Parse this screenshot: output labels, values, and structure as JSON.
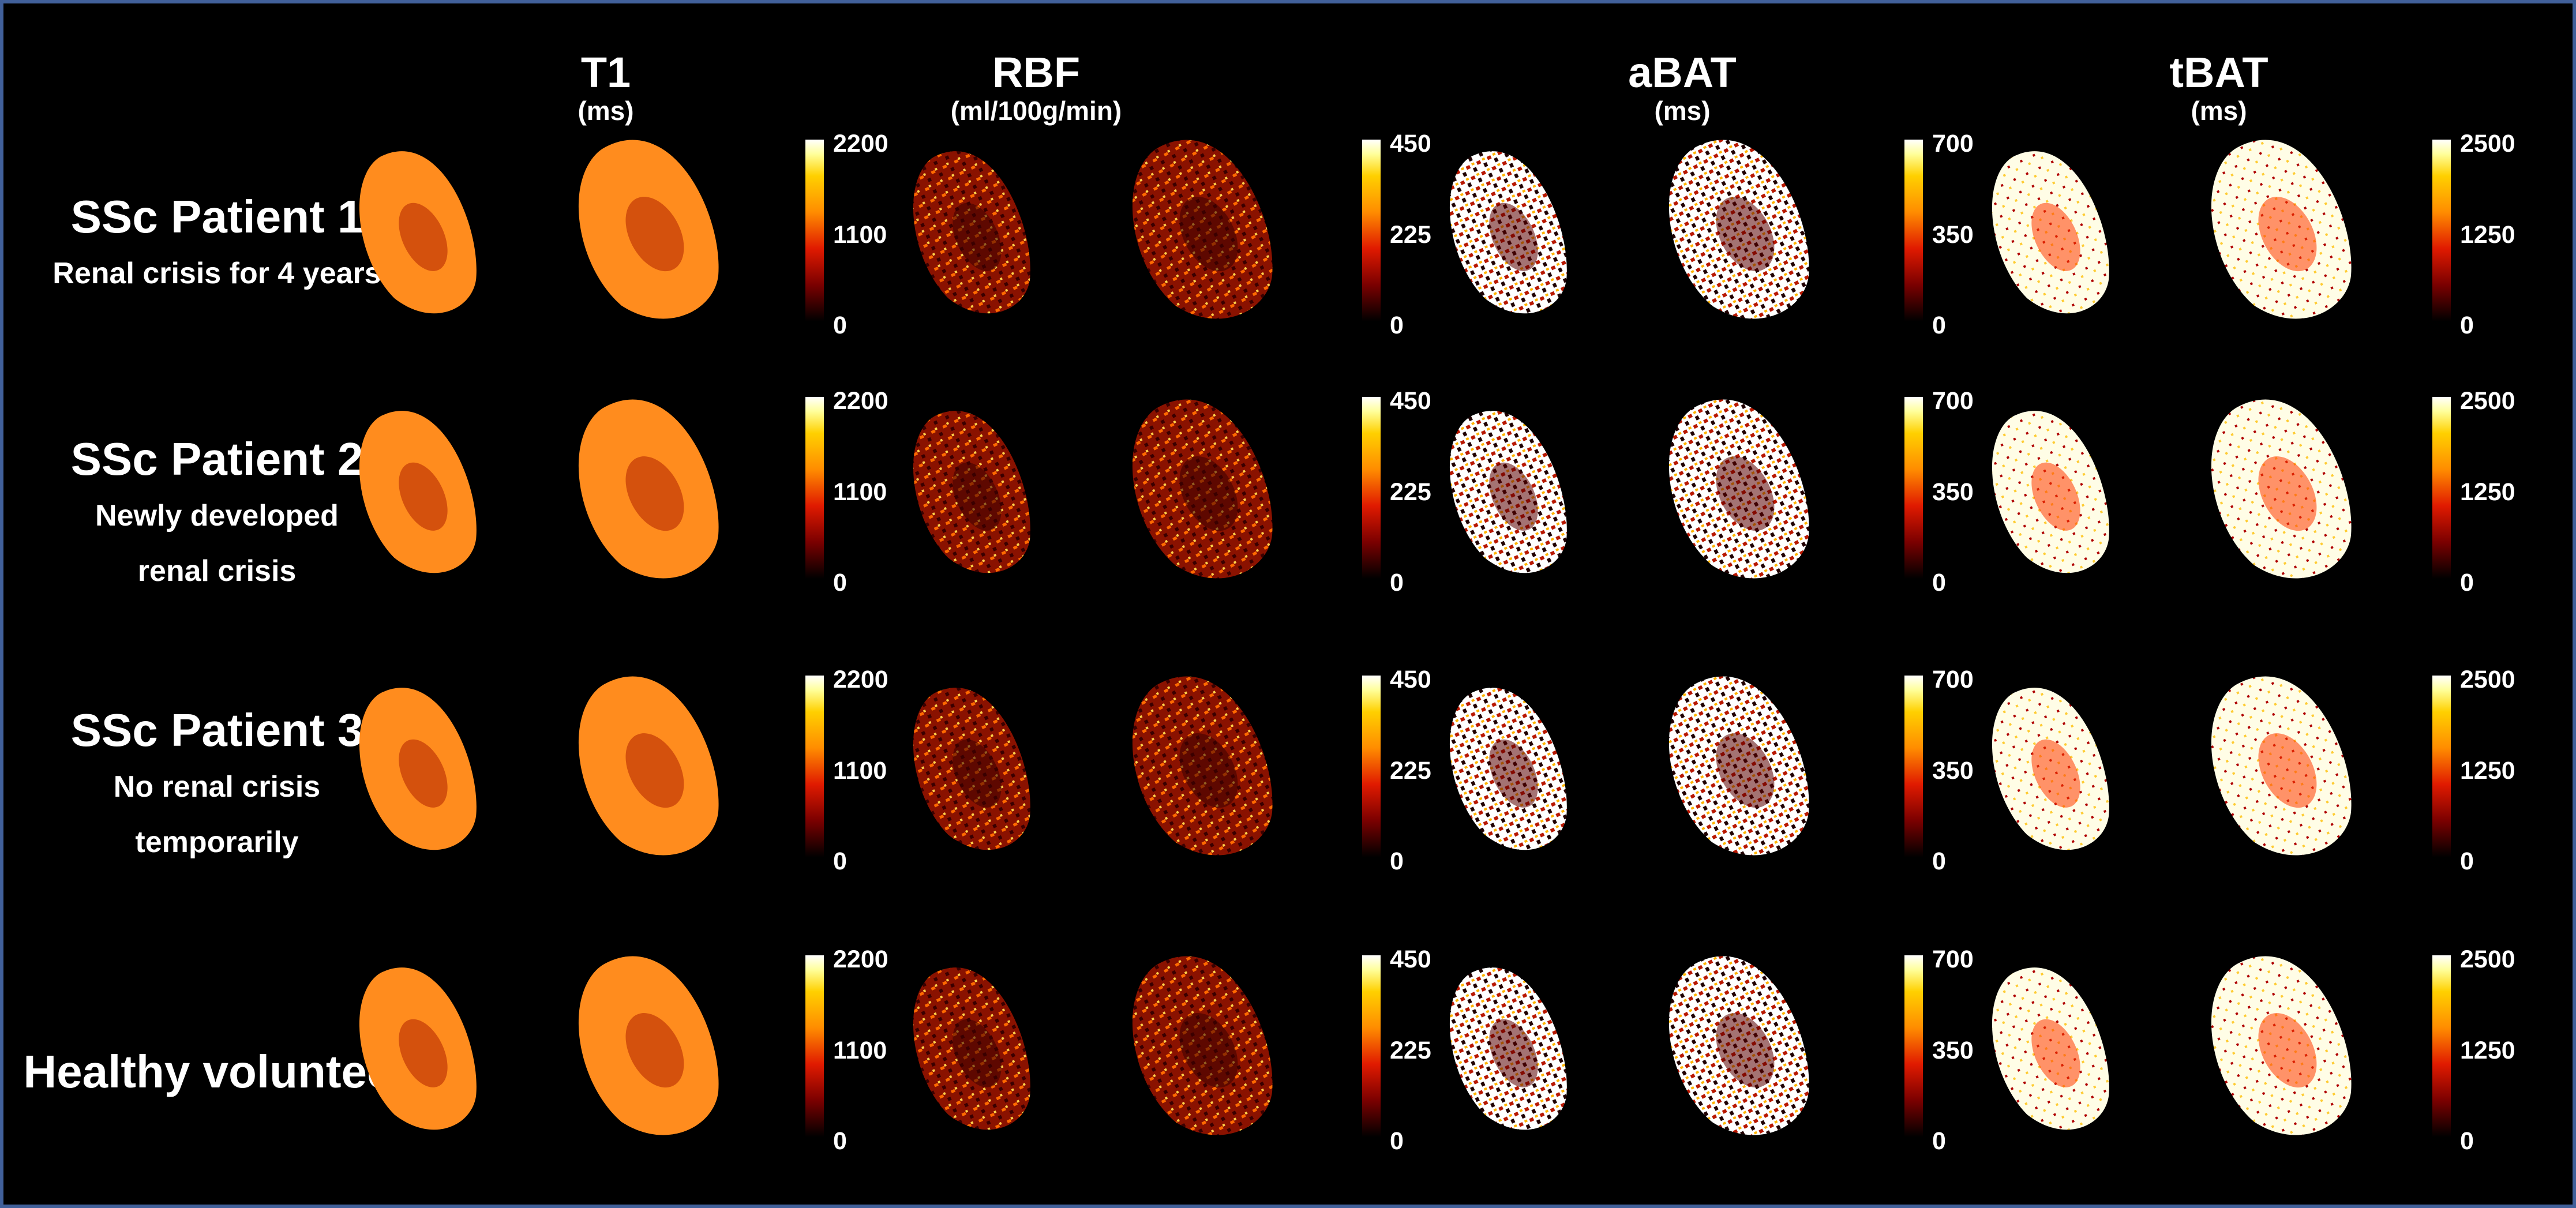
{
  "columns": [
    {
      "title": "T1",
      "unit": "(ms)",
      "colorbar_ticks": [
        "2200",
        "1100",
        "0"
      ]
    },
    {
      "title": "RBF",
      "unit": "(ml/100g/min)",
      "colorbar_ticks": [
        "450",
        "225",
        "0"
      ]
    },
    {
      "title": "aBAT",
      "unit": "(ms)",
      "colorbar_ticks": [
        "700",
        "350",
        "0"
      ]
    },
    {
      "title": "tBAT",
      "unit": "(ms)",
      "colorbar_ticks": [
        "2500",
        "1250",
        "0"
      ]
    }
  ],
  "rows": [
    {
      "title": "SSc Patient 1",
      "subtitle": [
        "Renal crisis for 4 years"
      ]
    },
    {
      "title": "SSc Patient 2",
      "subtitle": [
        "Newly developed",
        "renal crisis"
      ]
    },
    {
      "title": "SSc Patient 3",
      "subtitle": [
        "No renal crisis",
        "temporarily"
      ]
    },
    {
      "title": "Healthy volunteer",
      "subtitle": []
    }
  ],
  "colors": {
    "background": "#000000",
    "border": "#41609a",
    "colormap": [
      "#000000",
      "#7a0000",
      "#e01a00",
      "#ff8c00",
      "#ffd000",
      "#ffff9a",
      "#ffffff"
    ]
  },
  "map_fill": {
    "T1": "#ff8c1e",
    "RBF": "#a31600",
    "aBAT": "#ffffff",
    "tBAT": "#fffbe0"
  }
}
